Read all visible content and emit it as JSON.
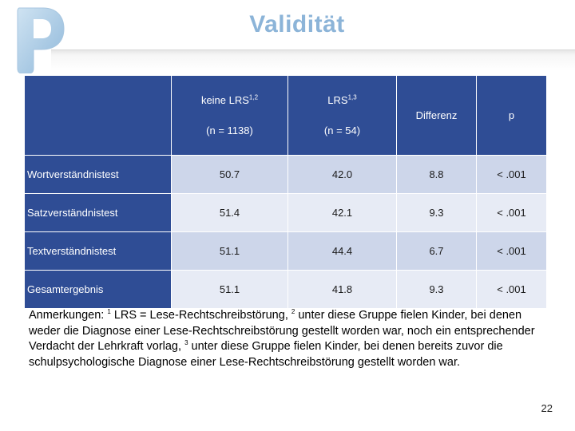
{
  "title": "Validität",
  "table": {
    "headers": [
      {
        "line1": "keine LRS",
        "sup": "1,2",
        "line2": "(n = 1138)"
      },
      {
        "line1": "LRS",
        "sup": "1,3",
        "line2": "(n = 54)"
      },
      {
        "line1": "Differenz"
      },
      {
        "line1": "p"
      }
    ],
    "rows": [
      {
        "label": "Wortverständnistest",
        "values": [
          "50.7",
          "42.0",
          "8.8",
          "< .001"
        ]
      },
      {
        "label": "Satzverständnistest",
        "values": [
          "51.4",
          "42.1",
          "9.3",
          "< .001"
        ]
      },
      {
        "label": "Textverständnistest",
        "values": [
          "51.1",
          "44.4",
          "6.7",
          "< .001"
        ]
      },
      {
        "label": "Gesamtergebnis",
        "values": [
          "51.1",
          "41.8",
          "9.3",
          "< .001"
        ]
      }
    ]
  },
  "notes": {
    "prefix": "Anmerkungen: ",
    "sup1": "1",
    "part1": " LRS = Lese-Rechtschreibstörung, ",
    "sup2": "2",
    "part2": " unter diese Gruppe fielen Kinder, bei denen weder die Diagnose einer Lese-Rechtschreibstörung gestellt worden war, noch ein entsprechender Verdacht der Lehrkraft vorlag, ",
    "sup3": "3",
    "part3": " unter diese Gruppe fielen Kinder, bei denen bereits zuvor die schulpsychologische Diagnose einer Lese-Rechtschreibstörung gestellt worden war."
  },
  "page_number": "22",
  "colors": {
    "accent": "#8cb4d8",
    "table_header": "#2f4d95",
    "row_odd": "#cdd6ea",
    "row_even": "#e7ebf5"
  },
  "icons": {
    "logo": "p-logo"
  }
}
